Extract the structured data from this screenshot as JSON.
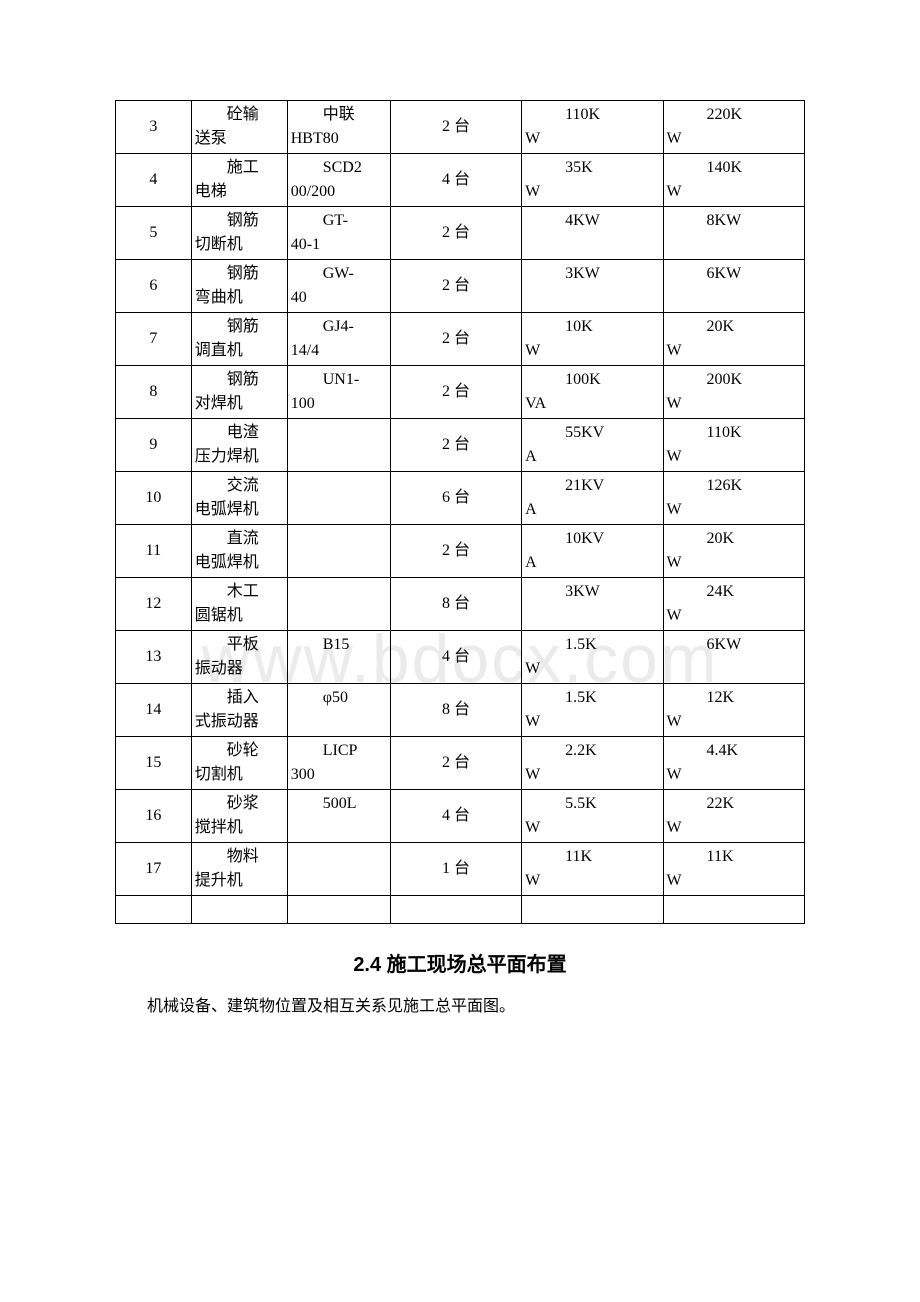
{
  "watermark": "www.bdocx.com",
  "table": {
    "columns": {
      "num_width": 75,
      "name_width": 95,
      "model_width": 102,
      "qty_width": 130,
      "power_width": 140,
      "total_width": 140
    },
    "rows": [
      {
        "num": "3",
        "name_l1": "砼输",
        "name_l2": "送泵",
        "model_l1": "中联",
        "model_l2": "HBT80",
        "qty": "2 台",
        "power_l1": "110K",
        "power_l2": "W",
        "total_l1": "220K",
        "total_l2": "W"
      },
      {
        "num": "4",
        "name_l1": "施工",
        "name_l2": "电梯",
        "model_l1": "SCD2",
        "model_l2": "00/200",
        "qty": "4 台",
        "power_l1": "35K",
        "power_l2": "W",
        "total_l1": "140K",
        "total_l2": "W"
      },
      {
        "num": "5",
        "name_l1": "钢筋",
        "name_l2": "切断机",
        "model_l1": "GT-",
        "model_l2": "40-1",
        "qty": "2 台",
        "power_l1": "4KW",
        "power_l2": "",
        "total_l1": "8KW",
        "total_l2": ""
      },
      {
        "num": "6",
        "name_l1": "钢筋",
        "name_l2": "弯曲机",
        "model_l1": "GW-",
        "model_l2": "40",
        "qty": "2 台",
        "power_l1": "3KW",
        "power_l2": "",
        "total_l1": "6KW",
        "total_l2": ""
      },
      {
        "num": "7",
        "name_l1": "钢筋",
        "name_l2": "调直机",
        "model_l1": "GJ4-",
        "model_l2": "14/4",
        "qty": "2 台",
        "power_l1": "10K",
        "power_l2": "W",
        "total_l1": "20K",
        "total_l2": "W"
      },
      {
        "num": "8",
        "name_l1": "钢筋",
        "name_l2": "对焊机",
        "model_l1": "UN1-",
        "model_l2": "100",
        "qty": "2 台",
        "power_l1": "100K",
        "power_l2": "VA",
        "total_l1": "200K",
        "total_l2": "W"
      },
      {
        "num": "9",
        "name_l1": "电渣",
        "name_l2": "压力焊机",
        "model_l1": "",
        "model_l2": "",
        "qty": "2 台",
        "power_l1": "55KV",
        "power_l2": "A",
        "total_l1": "110K",
        "total_l2": "W"
      },
      {
        "num": "10",
        "name_l1": "交流",
        "name_l2": "电弧焊机",
        "model_l1": "",
        "model_l2": "",
        "qty": "6 台",
        "power_l1": "21KV",
        "power_l2": "A",
        "total_l1": "126K",
        "total_l2": "W"
      },
      {
        "num": "11",
        "name_l1": "直流",
        "name_l2": "电弧焊机",
        "model_l1": "",
        "model_l2": "",
        "qty": "2 台",
        "power_l1": "10KV",
        "power_l2": "A",
        "total_l1": "20K",
        "total_l2": "W"
      },
      {
        "num": "12",
        "name_l1": "木工",
        "name_l2": "圆锯机",
        "model_l1": "",
        "model_l2": "",
        "qty": "8 台",
        "power_l1": "3KW",
        "power_l2": "",
        "total_l1": "24K",
        "total_l2": "W"
      },
      {
        "num": "13",
        "name_l1": "平板",
        "name_l2": "振动器",
        "model_l1": "B15",
        "model_l2": "",
        "qty": "4 台",
        "power_l1": "1.5K",
        "power_l2": "W",
        "total_l1": "6KW",
        "total_l2": ""
      },
      {
        "num": "14",
        "name_l1": "插入",
        "name_l2": "式振动器",
        "model_l1": "φ50",
        "model_l2": "",
        "qty": "8 台",
        "power_l1": "1.5K",
        "power_l2": "W",
        "total_l1": "12K",
        "total_l2": "W"
      },
      {
        "num": "15",
        "name_l1": "砂轮",
        "name_l2": "切割机",
        "model_l1": "LICP",
        "model_l2": "300",
        "qty": "2 台",
        "power_l1": "2.2K",
        "power_l2": "W",
        "total_l1": "4.4K",
        "total_l2": "W"
      },
      {
        "num": "16",
        "name_l1": "砂浆",
        "name_l2": "搅拌机",
        "model_l1": "500L",
        "model_l2": "",
        "qty": "4 台",
        "power_l1": "5.5K",
        "power_l2": "W",
        "total_l1": "22K",
        "total_l2": "W"
      },
      {
        "num": "17",
        "name_l1": "物料",
        "name_l2": "提升机",
        "model_l1": "",
        "model_l2": "",
        "qty": "1 台",
        "power_l1": "11K",
        "power_l2": "W",
        "total_l1": "11K",
        "total_l2": "W"
      }
    ]
  },
  "heading": "2.4 施工现场总平面布置",
  "body_text": "机械设备、建筑物位置及相互关系见施工总平面图。",
  "colors": {
    "text": "#000000",
    "border": "#000000",
    "background": "#ffffff",
    "watermark": "#ebebeb"
  },
  "fonts": {
    "body_family": "SimSun",
    "heading_family": "SimHei",
    "body_size_pt": 12,
    "heading_size_pt": 15
  }
}
